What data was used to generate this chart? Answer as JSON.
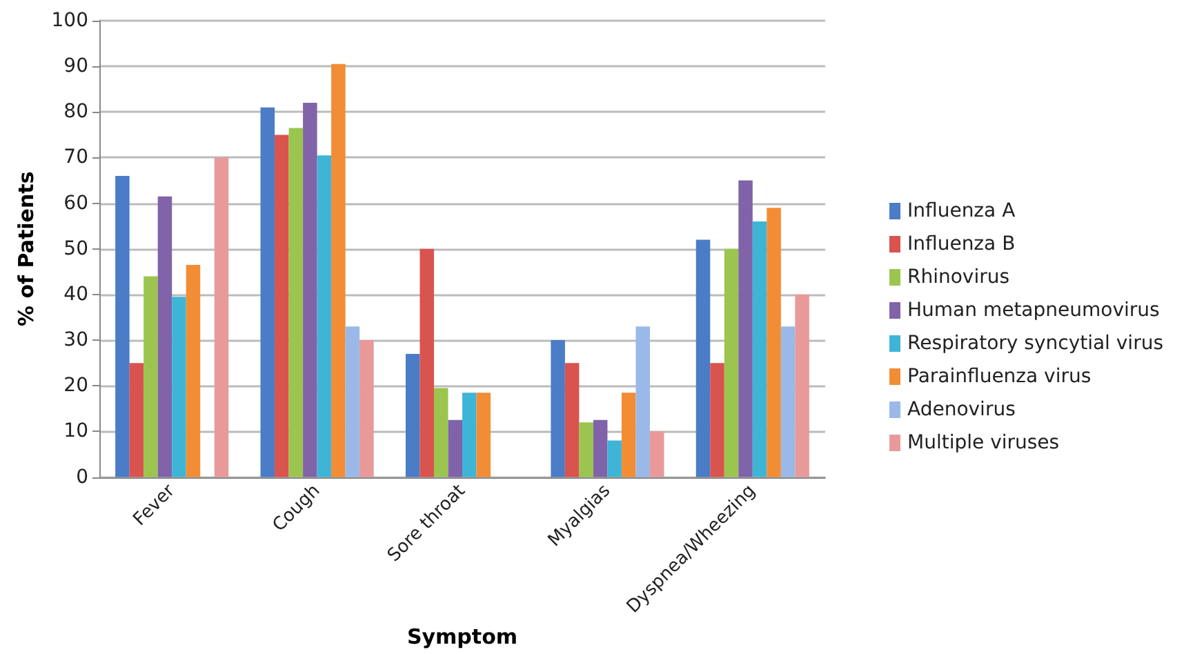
{
  "chart_data": {
    "type": "bar",
    "xlabel": "Symptom",
    "ylabel": "% of Patients",
    "categories": [
      "Fever",
      "Cough",
      "Sore throat",
      "Myalgias",
      "Dyspnea/Wheezing"
    ],
    "series": [
      {
        "name": "Influenza A",
        "color": "#4a7cc7",
        "values": [
          66,
          81,
          27,
          30,
          52
        ]
      },
      {
        "name": "Influenza B",
        "color": "#d9534f",
        "values": [
          25,
          75,
          50,
          25,
          25
        ]
      },
      {
        "name": "Rhinovirus",
        "color": "#9bc54e",
        "values": [
          44,
          76.5,
          19.5,
          12,
          50
        ]
      },
      {
        "name": "Human metapneumovirus",
        "color": "#8063a8",
        "values": [
          61.5,
          82,
          12.5,
          12.5,
          65
        ]
      },
      {
        "name": "Respiratory syncytial virus",
        "color": "#3eb5d6",
        "values": [
          39.5,
          70.5,
          18.5,
          8,
          56
        ]
      },
      {
        "name": "Parainfluenza virus",
        "color": "#f28c35",
        "values": [
          46.5,
          90.5,
          18.5,
          18.5,
          59
        ]
      },
      {
        "name": "Adenovirus",
        "color": "#9ab9e8",
        "values": [
          0,
          33,
          0,
          33,
          33
        ]
      },
      {
        "name": "Multiple viruses",
        "color": "#e89a9a",
        "values": [
          70,
          30,
          0,
          10,
          40
        ]
      }
    ],
    "ylim": [
      0,
      100
    ],
    "yticks": [
      0,
      10,
      20,
      30,
      40,
      50,
      60,
      70,
      80,
      90,
      100
    ],
    "grid": "y",
    "legend": "right"
  }
}
